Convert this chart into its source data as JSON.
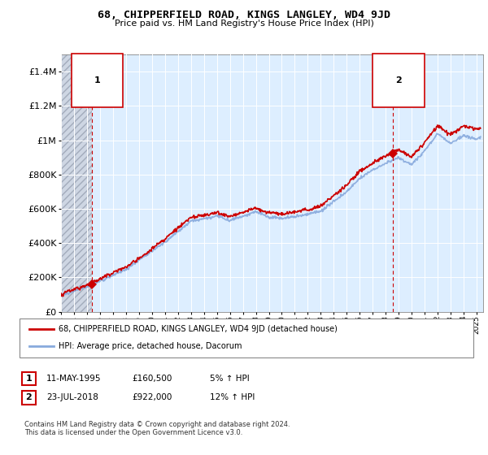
{
  "title": "68, CHIPPERFIELD ROAD, KINGS LANGLEY, WD4 9JD",
  "subtitle": "Price paid vs. HM Land Registry's House Price Index (HPI)",
  "legend_line1": "68, CHIPPERFIELD ROAD, KINGS LANGLEY, WD4 9JD (detached house)",
  "legend_line2": "HPI: Average price, detached house, Dacorum",
  "annotation1_label": "1",
  "annotation1_date": "11-MAY-1995",
  "annotation1_price": "£160,500",
  "annotation1_hpi": "5% ↑ HPI",
  "annotation2_label": "2",
  "annotation2_date": "23-JUL-2018",
  "annotation2_price": "£922,000",
  "annotation2_hpi": "12% ↑ HPI",
  "footer": "Contains HM Land Registry data © Crown copyright and database right 2024.\nThis data is licensed under the Open Government Licence v3.0.",
  "property_color": "#cc0000",
  "hpi_color": "#88aadd",
  "plot_bg_color": "#ddeeff",
  "hatch_color": "#b0b8c8",
  "ylim": [
    0,
    1500000
  ],
  "yticks": [
    0,
    200000,
    400000,
    600000,
    800000,
    1000000,
    1200000,
    1400000
  ],
  "ytick_labels": [
    "£0",
    "£200K",
    "£400K",
    "£600K",
    "£800K",
    "£1M",
    "£1.2M",
    "£1.4M"
  ],
  "sale1_year": 1995.36,
  "sale1_price": 160500,
  "sale2_year": 2018.55,
  "sale2_price": 922000,
  "xmin": 1993,
  "xmax": 2025.5,
  "xticks": [
    1993,
    1994,
    1995,
    1996,
    1997,
    1998,
    1999,
    2000,
    2001,
    2002,
    2003,
    2004,
    2005,
    2006,
    2007,
    2008,
    2009,
    2010,
    2011,
    2012,
    2013,
    2014,
    2015,
    2016,
    2017,
    2018,
    2019,
    2020,
    2021,
    2022,
    2023,
    2024,
    2025
  ]
}
